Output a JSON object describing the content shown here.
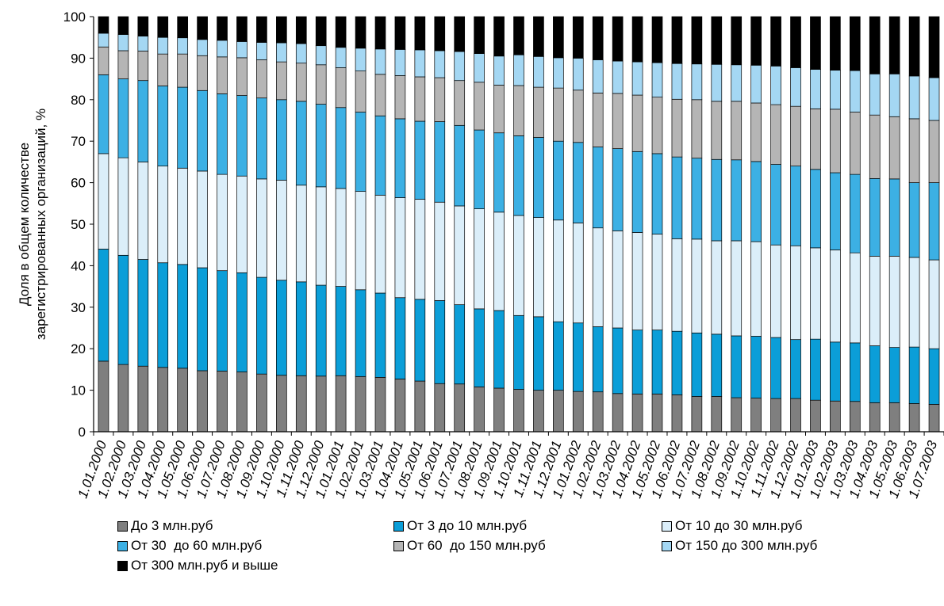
{
  "chart_data": {
    "type": "bar",
    "stacked": true,
    "ylabel": "Доля в общем количестве зарегистрированных организаций, %",
    "ylabel_lines": [
      "Доля в общем количестве",
      "зарегистрированных организаций, %"
    ],
    "ylim": [
      0,
      100
    ],
    "yticks": [
      0,
      10,
      20,
      30,
      40,
      50,
      60,
      70,
      80,
      90,
      100
    ],
    "categories": [
      "1.01.2000",
      "1.02.2000",
      "1.03.2000",
      "1.04.2000",
      "1.05.2000",
      "1.06.2000",
      "1.07.2000",
      "1.08.2000",
      "1.09.2000",
      "1.10.2000",
      "1.11.2000",
      "1.12.2000",
      "1.01.2001",
      "1.02.2001",
      "1.03.2001",
      "1.04.2001",
      "1.05.2001",
      "1.06.2001",
      "1.07.2001",
      "1.08.2001",
      "1.09.2001",
      "1.10.2001",
      "1.11.2001",
      "1.12.2001",
      "1.01.2002",
      "1.02.2002",
      "1.03.2002",
      "1.04.2002",
      "1.05.2002",
      "1.06.2002",
      "1.07.2002",
      "1.08.2002",
      "1.09.2002",
      "1.10.2002",
      "1.11.2002",
      "1.12.2002",
      "1.01.2003",
      "1.02.2003",
      "1.03.2003",
      "1.04.2003",
      "1.05.2003",
      "1.06.2003",
      "1.07.2003"
    ],
    "cumulative_levels": [
      [
        17,
        44,
        67,
        86,
        92.7,
        96,
        100
      ],
      [
        16.2,
        42.5,
        66,
        85,
        91.8,
        95.7,
        100
      ],
      [
        15.8,
        41.5,
        65,
        84.6,
        91.7,
        95.3,
        100
      ],
      [
        15.5,
        40.7,
        64,
        83.3,
        91,
        95,
        100
      ],
      [
        15.3,
        40.3,
        63.5,
        83,
        91,
        94.9,
        100
      ],
      [
        14.7,
        39.5,
        62.8,
        82.2,
        90.6,
        94.5,
        100
      ],
      [
        14.6,
        38.8,
        62,
        81.4,
        90.3,
        94.3,
        100
      ],
      [
        14.4,
        38.3,
        61.6,
        81,
        90.1,
        94,
        100
      ],
      [
        13.9,
        37.2,
        60.9,
        80.4,
        89.6,
        93.8,
        100
      ],
      [
        13.6,
        36.5,
        60.6,
        80,
        89.1,
        93.7,
        100
      ],
      [
        13.5,
        36.1,
        59.4,
        79.6,
        88.8,
        93.5,
        100
      ],
      [
        13.4,
        35.3,
        59,
        78.9,
        88.4,
        93,
        100
      ],
      [
        13.5,
        35,
        58.6,
        78.1,
        87.7,
        92.6,
        100
      ],
      [
        13.3,
        34.2,
        57.9,
        77,
        86.9,
        92.4,
        100
      ],
      [
        13.1,
        33.4,
        57,
        76.1,
        86.1,
        92.2,
        100
      ],
      [
        12.7,
        32.3,
        56.4,
        75.4,
        85.8,
        92.1,
        100
      ],
      [
        12.2,
        31.9,
        56,
        74.8,
        85.5,
        92,
        100
      ],
      [
        11.6,
        31.6,
        55.3,
        74.7,
        85.3,
        91.8,
        100
      ],
      [
        11.5,
        30.6,
        54.4,
        73.8,
        84.6,
        91.6,
        100
      ],
      [
        10.8,
        29.6,
        53.7,
        72.7,
        84.2,
        91.1,
        100
      ],
      [
        10.5,
        29.2,
        52.9,
        72,
        83.5,
        90.5,
        100
      ],
      [
        10.2,
        28,
        52.1,
        71.3,
        83.4,
        90.8,
        100
      ],
      [
        10,
        27.7,
        51.6,
        70.9,
        83,
        90.4,
        100
      ],
      [
        10,
        26.5,
        51,
        70,
        82.8,
        90.1,
        100
      ],
      [
        9.7,
        26.2,
        50.3,
        69.7,
        82.3,
        90,
        100
      ],
      [
        9.6,
        25.3,
        49.1,
        68.6,
        81.6,
        89.6,
        100
      ],
      [
        9.2,
        25,
        48.4,
        68.2,
        81.5,
        89.3,
        100
      ],
      [
        9.1,
        24.5,
        48,
        67.5,
        81.1,
        89.1,
        100
      ],
      [
        9.1,
        24.5,
        47.6,
        67,
        80.6,
        88.9,
        100
      ],
      [
        8.9,
        24.2,
        46.5,
        66.2,
        80.1,
        88.7,
        100
      ],
      [
        8.5,
        23.8,
        46.4,
        65.9,
        80,
        88.6,
        100
      ],
      [
        8.5,
        23.5,
        46,
        65.6,
        79.6,
        88.5,
        100
      ],
      [
        8.2,
        23.1,
        46,
        65.5,
        79.6,
        88.4,
        100
      ],
      [
        8.1,
        23,
        45.8,
        65.1,
        79.2,
        88.3,
        100
      ],
      [
        8,
        22.7,
        45,
        64.4,
        78.8,
        88.1,
        100
      ],
      [
        8,
        22.2,
        44.8,
        64,
        78.4,
        87.7,
        100
      ],
      [
        7.6,
        22.3,
        44.3,
        63.2,
        77.8,
        87.3,
        100
      ],
      [
        7.4,
        21.6,
        43.8,
        62.4,
        77.7,
        87.1,
        100
      ],
      [
        7.3,
        21.4,
        43.1,
        62,
        77,
        87,
        100
      ],
      [
        7,
        20.7,
        42.3,
        61,
        76.3,
        86.2,
        100
      ],
      [
        7,
        20.3,
        42.3,
        60.9,
        75.9,
        86.2,
        100
      ],
      [
        6.8,
        20.4,
        42,
        60,
        75.4,
        85.7,
        100
      ],
      [
        6.6,
        20,
        41.4,
        60,
        75,
        85.3,
        100
      ]
    ],
    "series": [
      {
        "name": "До 3 млн.руб",
        "color": "#7f7f7f"
      },
      {
        "name": "От 3 до 10 млн.руб",
        "color": "#0b9ed8"
      },
      {
        "name": "От 10 до 30 млн.руб",
        "color": "#dbeef9"
      },
      {
        "name": "От 30  до 60 млн.руб",
        "color": "#3cb0e4"
      },
      {
        "name": "От 60  до 150 млн.руб",
        "color": "#b5b5b5"
      },
      {
        "name": "От 150 до 300 млн.руб",
        "color": "#a4d7f3"
      },
      {
        "name": "От 300 млн.руб и выше",
        "color": "#000000"
      }
    ],
    "title_color": "#1aa5e0",
    "legend_position": "bottom"
  }
}
